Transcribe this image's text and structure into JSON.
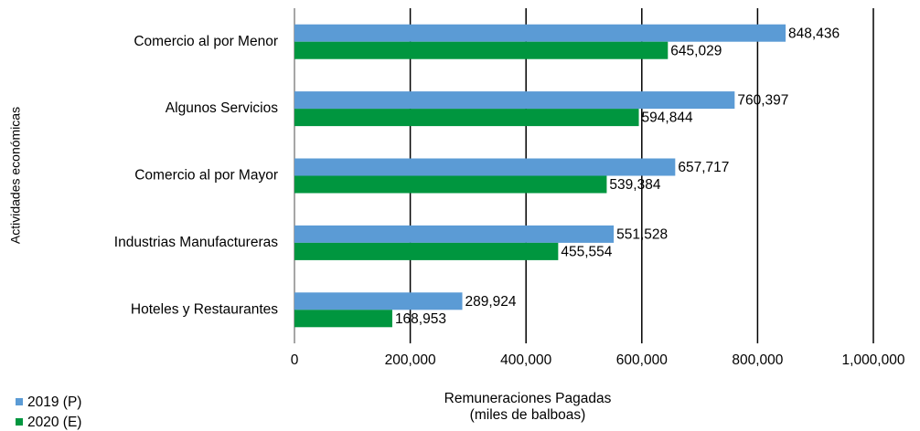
{
  "chart_data": {
    "type": "hbar",
    "ylabel": "Actividades económicas",
    "xlabel_lines": [
      "Remuneraciones Pagadas",
      "(miles de balboas)"
    ],
    "categories": [
      "Comercio al por Menor",
      "Algunos Servicios",
      "Comercio al por Mayor",
      "Industrias Manufactureras",
      "Hoteles y Restaurantes"
    ],
    "series": [
      {
        "name": "2019 (P)",
        "color": "#5b9bd5",
        "values": [
          848436,
          760397,
          657717,
          551528,
          289924
        ],
        "value_labels": [
          "848,436",
          "760,397",
          "657,717",
          "551,528",
          "289,924"
        ]
      },
      {
        "name": "2020 (E)",
        "color": "#00963f",
        "values": [
          645029,
          594844,
          539384,
          455554,
          168953
        ],
        "value_labels": [
          "645,029",
          "594,844",
          "539,384",
          "455,554",
          "168,953"
        ]
      }
    ],
    "xlim": [
      0,
      1000000
    ],
    "xticks": [
      0,
      {
        "value": 200000,
        "label": "200,000"
      },
      {
        "value": 400000,
        "label": "400,000"
      },
      {
        "value": 600000,
        "label": "600,000"
      },
      {
        "value": 800000,
        "label": "800,000"
      },
      {
        "value": 1000000,
        "label": "1,000,000"
      }
    ],
    "grid": true,
    "legend": "bottom-left"
  }
}
